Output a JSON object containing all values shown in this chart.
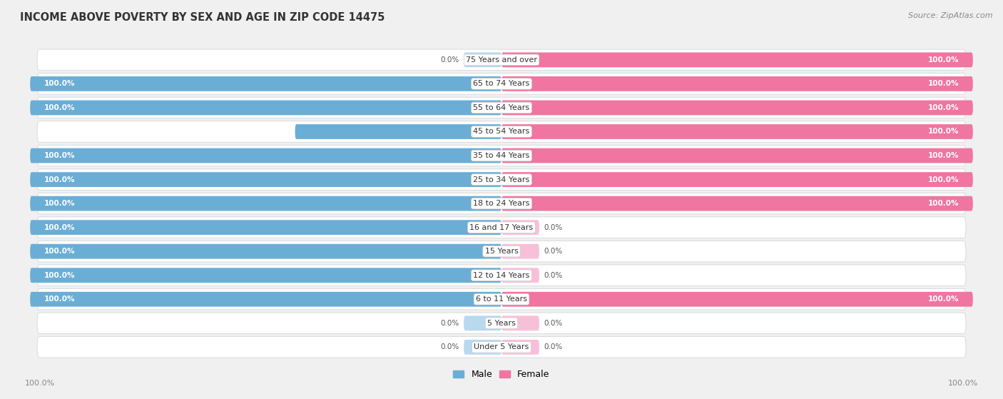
{
  "title": "INCOME ABOVE POVERTY BY SEX AND AGE IN ZIP CODE 14475",
  "source": "Source: ZipAtlas.com",
  "categories": [
    "Under 5 Years",
    "5 Years",
    "6 to 11 Years",
    "12 to 14 Years",
    "15 Years",
    "16 and 17 Years",
    "18 to 24 Years",
    "25 to 34 Years",
    "35 to 44 Years",
    "45 to 54 Years",
    "55 to 64 Years",
    "65 to 74 Years",
    "75 Years and over"
  ],
  "male_values": [
    0.0,
    0.0,
    100.0,
    100.0,
    100.0,
    100.0,
    100.0,
    100.0,
    100.0,
    43.8,
    100.0,
    100.0,
    0.0
  ],
  "female_values": [
    0.0,
    0.0,
    100.0,
    0.0,
    0.0,
    0.0,
    100.0,
    100.0,
    100.0,
    100.0,
    100.0,
    100.0,
    100.0
  ],
  "male_color": "#6aaed6",
  "female_color": "#f075a0",
  "male_color_light": "#b8d9ee",
  "female_color_light": "#f8c0d8",
  "bar_height": 0.62,
  "background_color": "#f0f0f0",
  "row_bg": "#ffffff",
  "row_border": "#d0d0d0"
}
